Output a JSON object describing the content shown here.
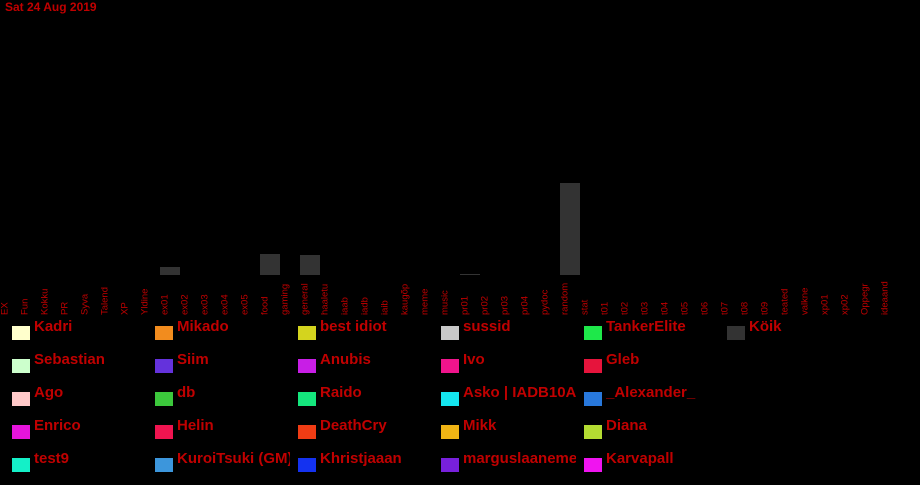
{
  "chart_data": {
    "type": "bar",
    "title": "Sat 24 Aug 2019",
    "xlabel": "",
    "ylabel": "",
    "grid": false,
    "legend_placement": "bottom",
    "categories": [
      "EX",
      "Fun",
      "Kokku",
      "PR",
      "Syva",
      "Talend",
      "XP",
      "Yldine",
      "ex01",
      "ex02",
      "ex03",
      "ex04",
      "ex05",
      "food",
      "gaming",
      "general",
      "haaletu",
      "iaab",
      "iadb",
      "iaib",
      "kaugõp",
      "meme",
      "music",
      "pr01",
      "pr02",
      "pr03",
      "pr04",
      "pydoc",
      "random",
      "stat",
      "t01",
      "t02",
      "t03",
      "t04",
      "t05",
      "t06",
      "t07",
      "t08",
      "t09",
      "teated",
      "valkne",
      "xp01",
      "xp02",
      "Oppegr",
      "ideaand"
    ],
    "series": [
      {
        "name": "Köik",
        "color": "#333333",
        "values": [
          0,
          0,
          0,
          0,
          0,
          0,
          0,
          0,
          8,
          0,
          0,
          0,
          0,
          21,
          0,
          20,
          0,
          0,
          0,
          0,
          0,
          0,
          0,
          1,
          0,
          0,
          0,
          0,
          92,
          0,
          0,
          0,
          0,
          0,
          0,
          0,
          0,
          0,
          0,
          0,
          0,
          0,
          0,
          0,
          0
        ]
      }
    ],
    "ylim": [
      0,
      100
    ],
    "legend": [
      {
        "name": "Kadri",
        "color": "#ffffcc"
      },
      {
        "name": "Mikado",
        "color": "#f28c1e"
      },
      {
        "name": "best idiot",
        "color": "#d4d41e"
      },
      {
        "name": "sussid",
        "color": "#c8c8c8"
      },
      {
        "name": "TankerElite",
        "color": "#1ee84a"
      },
      {
        "name": "Köik",
        "color": "#333333"
      },
      {
        "name": "Sebastian",
        "color": "#ccffcc"
      },
      {
        "name": "Siim",
        "color": "#6432dc"
      },
      {
        "name": "Anubis",
        "color": "#c81ee6"
      },
      {
        "name": "Ivo",
        "color": "#f0148c"
      },
      {
        "name": "Gleb",
        "color": "#e6143c"
      },
      {
        "name": "Ago",
        "color": "#ffc8c8"
      },
      {
        "name": "db",
        "color": "#3cc83c"
      },
      {
        "name": "Raido",
        "color": "#14e67d"
      },
      {
        "name": "Asko | IADB10A",
        "color": "#14e6f0"
      },
      {
        "name": "_Alexander_",
        "color": "#2878dc"
      },
      {
        "name": "Enrico",
        "color": "#e614dc"
      },
      {
        "name": "Helin",
        "color": "#f01450"
      },
      {
        "name": "DeathCry",
        "color": "#f03c14"
      },
      {
        "name": "Mikk",
        "color": "#f0b414"
      },
      {
        "name": "Diana",
        "color": "#b4dc32"
      },
      {
        "name": "test9",
        "color": "#14f0c8"
      },
      {
        "name": "KuroiTsuki (GM)",
        "color": "#3c96dc"
      },
      {
        "name": "Khristjaaan",
        "color": "#1432f0"
      },
      {
        "name": "marguslaanemets",
        "color": "#7820dc"
      },
      {
        "name": "Karvapall",
        "color": "#f014f0"
      }
    ]
  }
}
